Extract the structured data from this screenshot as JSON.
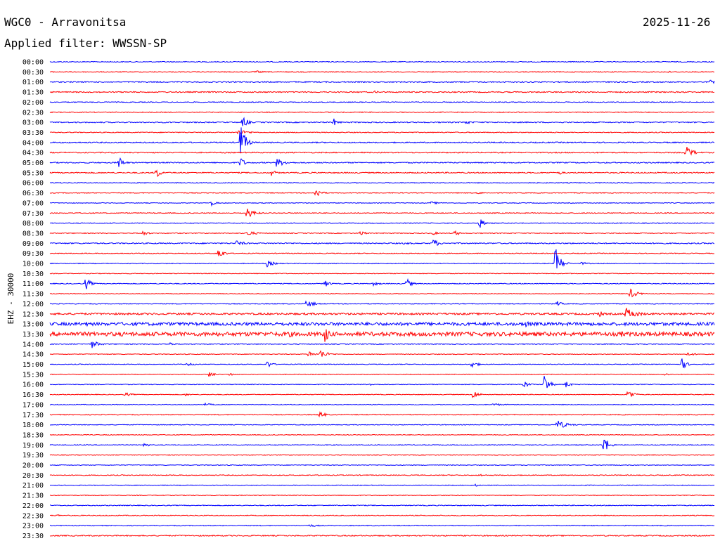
{
  "header": {
    "station": "WGC0 - Arravonitsa",
    "date": "2025-11-26",
    "filter": "Applied filter: WWSSN-SP"
  },
  "colors": {
    "trace_a": "#0000ff",
    "trace_b": "#ff0000",
    "text": "#000000",
    "background": "#ffffff"
  },
  "chart_data": {
    "type": "line",
    "title": "WGC0 - Arravonitsa",
    "subtitle": "Applied filter: WWSSN-SP",
    "ylabel": "EHZ - 30000",
    "row_labels": [
      "00:00",
      "00:30",
      "01:00",
      "01:30",
      "02:00",
      "02:30",
      "03:00",
      "03:30",
      "04:00",
      "04:30",
      "05:00",
      "05:30",
      "06:00",
      "06:30",
      "07:00",
      "07:30",
      "08:00",
      "08:30",
      "09:00",
      "09:30",
      "10:00",
      "10:30",
      "11:00",
      "11:30",
      "12:00",
      "12:30",
      "13:00",
      "13:30",
      "14:00",
      "14:30",
      "15:00",
      "15:30",
      "16:00",
      "16:30",
      "17:00",
      "17:30",
      "18:00",
      "18:30",
      "19:00",
      "19:30",
      "20:00",
      "20:30",
      "21:00",
      "21:30",
      "22:00",
      "22:30",
      "23:00",
      "23:30"
    ],
    "row_minutes": 30,
    "series_colors": [
      "#0000ff",
      "#ff0000"
    ],
    "noise": [
      0.6,
      0.6,
      0.8,
      0.8,
      0.6,
      0.6,
      0.8,
      0.6,
      0.8,
      0.8,
      0.8,
      0.8,
      0.6,
      0.6,
      0.5,
      0.6,
      0.6,
      0.6,
      0.8,
      0.6,
      0.6,
      0.5,
      0.6,
      0.5,
      0.6,
      1.3,
      2.2,
      2.8,
      0.6,
      0.5,
      0.5,
      0.5,
      0.5,
      0.5,
      0.5,
      0.6,
      0.5,
      0.5,
      0.6,
      0.5,
      0.5,
      0.6,
      0.5,
      0.5,
      0.6,
      0.6,
      0.6,
      0.8
    ],
    "events": [
      {
        "row": 1,
        "t": 9.3,
        "a": 2,
        "w": 0.4
      },
      {
        "row": 1,
        "t": 27.8,
        "a": 2,
        "w": 0.3
      },
      {
        "row": 2,
        "t": 29.8,
        "a": 3,
        "w": 0.3
      },
      {
        "row": 3,
        "t": 14.6,
        "a": 2,
        "w": 0.4
      },
      {
        "row": 6,
        "t": 8.7,
        "a": 10,
        "w": 0.2
      },
      {
        "row": 6,
        "t": 12.8,
        "a": 6,
        "w": 0.2
      },
      {
        "row": 6,
        "t": 18.7,
        "a": 3,
        "w": 0.4
      },
      {
        "row": 7,
        "t": 8.5,
        "a": 4,
        "w": 0.5
      },
      {
        "row": 8,
        "t": 8.6,
        "a": 28,
        "w": 0.2
      },
      {
        "row": 8,
        "t": 8.8,
        "a": 5,
        "w": 0.3
      },
      {
        "row": 9,
        "t": 28.7,
        "a": 10,
        "w": 0.3
      },
      {
        "row": 10,
        "t": 3.1,
        "a": 10,
        "w": 0.2
      },
      {
        "row": 10,
        "t": 10.2,
        "a": 7,
        "w": 0.4
      },
      {
        "row": 10,
        "t": 8.6,
        "a": 10,
        "w": 0.15
      },
      {
        "row": 11,
        "t": 4.8,
        "a": 8,
        "w": 0.2
      },
      {
        "row": 11,
        "t": 10.0,
        "a": 5,
        "w": 0.2
      },
      {
        "row": 11,
        "t": 23.0,
        "a": 3,
        "w": 0.2
      },
      {
        "row": 13,
        "t": 12.0,
        "a": 9,
        "w": 0.2
      },
      {
        "row": 13,
        "t": 19.3,
        "a": 2,
        "w": 0.3
      },
      {
        "row": 14,
        "t": 7.3,
        "a": 4,
        "w": 0.2
      },
      {
        "row": 14,
        "t": 17.2,
        "a": 2,
        "w": 0.5
      },
      {
        "row": 15,
        "t": 8.9,
        "a": 8,
        "w": 0.3
      },
      {
        "row": 16,
        "t": 19.4,
        "a": 8,
        "w": 0.2
      },
      {
        "row": 17,
        "t": 4.2,
        "a": 5,
        "w": 0.2
      },
      {
        "row": 17,
        "t": 8.9,
        "a": 4,
        "w": 0.4
      },
      {
        "row": 17,
        "t": 14.0,
        "a": 5,
        "w": 0.2
      },
      {
        "row": 17,
        "t": 17.3,
        "a": 3,
        "w": 0.2
      },
      {
        "row": 17,
        "t": 18.3,
        "a": 4,
        "w": 0.2
      },
      {
        "row": 18,
        "t": 8.4,
        "a": 4,
        "w": 0.4
      },
      {
        "row": 18,
        "t": 16.0,
        "a": 2,
        "w": 0.4
      },
      {
        "row": 18,
        "t": 17.3,
        "a": 8,
        "w": 0.2
      },
      {
        "row": 19,
        "t": 7.6,
        "a": 10,
        "w": 0.2
      },
      {
        "row": 20,
        "t": 9.8,
        "a": 5,
        "w": 0.3
      },
      {
        "row": 20,
        "t": 22.8,
        "a": 28,
        "w": 0.2
      },
      {
        "row": 20,
        "t": 24.0,
        "a": 2,
        "w": 0.4
      },
      {
        "row": 22,
        "t": 1.6,
        "a": 10,
        "w": 0.2
      },
      {
        "row": 22,
        "t": 12.4,
        "a": 6,
        "w": 0.2
      },
      {
        "row": 22,
        "t": 14.6,
        "a": 3,
        "w": 0.3
      },
      {
        "row": 22,
        "t": 16.1,
        "a": 8,
        "w": 0.2
      },
      {
        "row": 23,
        "t": 26.2,
        "a": 7,
        "w": 0.3
      },
      {
        "row": 24,
        "t": 11.6,
        "a": 6,
        "w": 0.3
      },
      {
        "row": 24,
        "t": 22.9,
        "a": 4,
        "w": 0.2
      },
      {
        "row": 25,
        "t": 24.8,
        "a": 5,
        "w": 0.2
      },
      {
        "row": 25,
        "t": 26.0,
        "a": 9,
        "w": 0.5
      },
      {
        "row": 26,
        "t": 1.5,
        "a": 5,
        "w": 0.3
      },
      {
        "row": 26,
        "t": 21.5,
        "a": 7,
        "w": 0.2
      },
      {
        "row": 27,
        "t": 10.7,
        "a": 6,
        "w": 0.4
      },
      {
        "row": 27,
        "t": 12.4,
        "a": 14,
        "w": 0.2
      },
      {
        "row": 27,
        "t": 25.8,
        "a": 5,
        "w": 0.2
      },
      {
        "row": 28,
        "t": 1.9,
        "a": 6,
        "w": 0.3
      },
      {
        "row": 28,
        "t": 5.4,
        "a": 3,
        "w": 0.2
      },
      {
        "row": 28,
        "t": 26.5,
        "a": 2,
        "w": 0.4
      },
      {
        "row": 29,
        "t": 11.7,
        "a": 5,
        "w": 0.2
      },
      {
        "row": 29,
        "t": 12.2,
        "a": 7,
        "w": 0.3
      },
      {
        "row": 29,
        "t": 28.8,
        "a": 3,
        "w": 0.3
      },
      {
        "row": 30,
        "t": 6.2,
        "a": 2,
        "w": 0.5
      },
      {
        "row": 30,
        "t": 9.8,
        "a": 6,
        "w": 0.2
      },
      {
        "row": 30,
        "t": 19.0,
        "a": 5,
        "w": 0.3
      },
      {
        "row": 30,
        "t": 28.5,
        "a": 10,
        "w": 0.2
      },
      {
        "row": 31,
        "t": 7.2,
        "a": 5,
        "w": 0.2
      },
      {
        "row": 31,
        "t": 8.1,
        "a": 3,
        "w": 0.2
      },
      {
        "row": 31,
        "t": 27.7,
        "a": 2,
        "w": 0.4
      },
      {
        "row": 32,
        "t": 14.4,
        "a": 2,
        "w": 0.3
      },
      {
        "row": 32,
        "t": 21.4,
        "a": 6,
        "w": 0.2
      },
      {
        "row": 32,
        "t": 22.3,
        "a": 16,
        "w": 0.2
      },
      {
        "row": 32,
        "t": 23.3,
        "a": 5,
        "w": 0.2
      },
      {
        "row": 33,
        "t": 3.4,
        "a": 3,
        "w": 0.3
      },
      {
        "row": 33,
        "t": 6.1,
        "a": 2,
        "w": 0.3
      },
      {
        "row": 33,
        "t": 19.1,
        "a": 8,
        "w": 0.2
      },
      {
        "row": 33,
        "t": 26.1,
        "a": 10,
        "w": 0.2
      },
      {
        "row": 34,
        "t": 7.0,
        "a": 2,
        "w": 0.5
      },
      {
        "row": 34,
        "t": 20.0,
        "a": 2,
        "w": 0.6
      },
      {
        "row": 35,
        "t": 12.2,
        "a": 6,
        "w": 0.2
      },
      {
        "row": 36,
        "t": 22.9,
        "a": 7,
        "w": 0.4
      },
      {
        "row": 38,
        "t": 4.2,
        "a": 5,
        "w": 0.2
      },
      {
        "row": 38,
        "t": 25.0,
        "a": 15,
        "w": 0.2
      },
      {
        "row": 41,
        "t": 19.4,
        "a": 2,
        "w": 0.3
      },
      {
        "row": 42,
        "t": 19.2,
        "a": 2,
        "w": 0.2
      },
      {
        "row": 45,
        "t": 0.3,
        "a": 2,
        "w": 0.2
      },
      {
        "row": 46,
        "t": 11.7,
        "a": 2,
        "w": 0.5
      }
    ]
  }
}
